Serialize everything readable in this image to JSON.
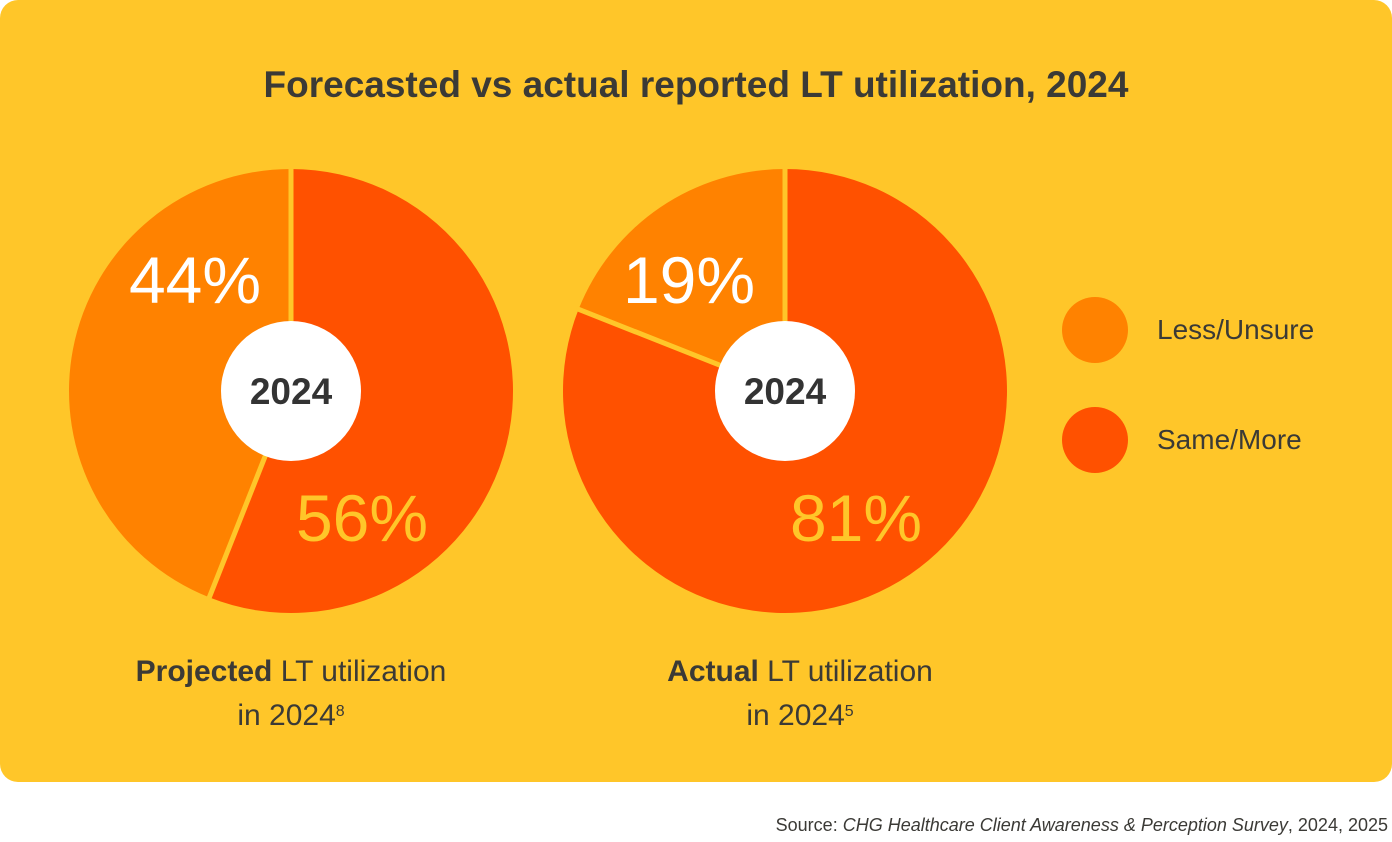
{
  "chart_data": [
    {
      "type": "pie",
      "title": "Forecasted vs actual reported LT utilization, 2024",
      "center_label": "2024",
      "caption_bold": "Projected",
      "caption_rest": " LT utilization",
      "caption_line2": "in 2024",
      "caption_sup": "8",
      "slices": [
        {
          "name": "Less/Unsure",
          "value": 44,
          "label": "44%"
        },
        {
          "name": "Same/More",
          "value": 56,
          "label": "56%"
        }
      ]
    },
    {
      "type": "pie",
      "center_label": "2024",
      "caption_bold": "Actual",
      "caption_rest": " LT utilization",
      "caption_line2": "in 2024",
      "caption_sup": "5",
      "slices": [
        {
          "name": "Less/Unsure",
          "value": 19,
          "label": "19%"
        },
        {
          "name": "Same/More",
          "value": 81,
          "label": "81%"
        }
      ]
    }
  ],
  "title": "Forecasted vs actual reported LT utilization, 2024",
  "legend": [
    {
      "label": "Less/Unsure",
      "color": "#FF8200"
    },
    {
      "label": "Same/More",
      "color": "#FF5100"
    }
  ],
  "colors": {
    "background": "#FFC629",
    "small_label": "#FFFFFF",
    "large_label": "#FFC629",
    "center": "#FFFFFF"
  },
  "source": {
    "prefix": "Source: ",
    "italic": "CHG Healthcare Client Awareness & Perception Survey",
    "suffix": ", 2024, 2025"
  }
}
